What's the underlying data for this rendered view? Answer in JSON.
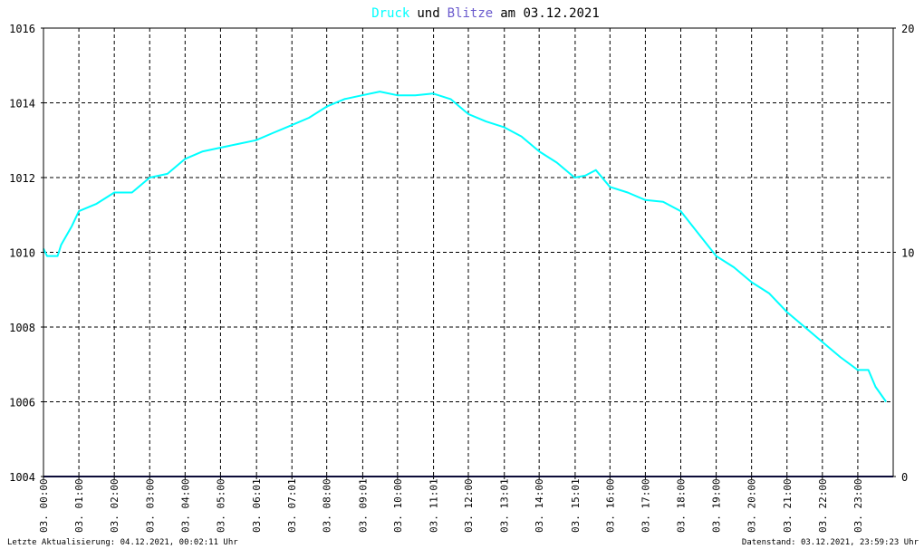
{
  "chart_data": {
    "type": "line",
    "title": {
      "part1": "Druck",
      "part2": "und",
      "part3": "Blitze",
      "part4": "am 03.12.2021",
      "color_druck": "#00ffff",
      "color_blitze": "#6a5acd",
      "color_text": "#000000"
    },
    "ylim": [
      1004,
      1016
    ],
    "y_ticks": [
      "1004",
      "1006",
      "1008",
      "1010",
      "1012",
      "1014",
      "1016"
    ],
    "y2lim": [
      0,
      20
    ],
    "y2_ticks": [
      "0",
      "10",
      "20"
    ],
    "xlim": [
      0,
      24
    ],
    "x_ticks": [
      {
        "h": 0.0,
        "label": "03. 00:00"
      },
      {
        "h": 1.0,
        "label": "03. 01:00"
      },
      {
        "h": 2.0,
        "label": "03. 02:00"
      },
      {
        "h": 3.0,
        "label": "03. 03:00"
      },
      {
        "h": 4.0,
        "label": "03. 04:00"
      },
      {
        "h": 5.0,
        "label": "03. 05:00"
      },
      {
        "h": 6.017,
        "label": "03. 06:01"
      },
      {
        "h": 7.017,
        "label": "03. 07:01"
      },
      {
        "h": 8.0,
        "label": "03. 08:00"
      },
      {
        "h": 9.017,
        "label": "03. 09:01"
      },
      {
        "h": 10.0,
        "label": "03. 10:00"
      },
      {
        "h": 11.017,
        "label": "03. 11:01"
      },
      {
        "h": 12.0,
        "label": "03. 12:00"
      },
      {
        "h": 13.017,
        "label": "03. 13:01"
      },
      {
        "h": 14.0,
        "label": "03. 14:00"
      },
      {
        "h": 15.017,
        "label": "03. 15:01"
      },
      {
        "h": 16.0,
        "label": "03. 16:00"
      },
      {
        "h": 17.0,
        "label": "03. 17:00"
      },
      {
        "h": 18.0,
        "label": "03. 18:00"
      },
      {
        "h": 19.0,
        "label": "03. 19:00"
      },
      {
        "h": 20.0,
        "label": "03. 20:00"
      },
      {
        "h": 21.0,
        "label": "03. 21:00"
      },
      {
        "h": 22.0,
        "label": "03. 22:00"
      },
      {
        "h": 23.0,
        "label": "03. 23:00"
      }
    ],
    "grid": true,
    "series": [
      {
        "name": "Druck",
        "color": "#00ffff",
        "axis": "left",
        "x": [
          0.0,
          0.1,
          0.4,
          0.5,
          0.8,
          1.0,
          1.5,
          2.0,
          2.5,
          3.0,
          3.5,
          4.0,
          4.5,
          5.0,
          5.5,
          6.0,
          6.5,
          7.0,
          7.5,
          8.0,
          8.5,
          9.0,
          9.5,
          10.0,
          10.5,
          11.0,
          11.5,
          12.0,
          12.5,
          13.0,
          13.5,
          14.0,
          14.5,
          15.0,
          15.3,
          15.6,
          16.0,
          16.5,
          17.0,
          17.5,
          18.0,
          18.5,
          19.0,
          19.5,
          20.0,
          20.5,
          21.0,
          21.5,
          22.0,
          22.5,
          23.0,
          23.3,
          23.5,
          23.8
        ],
        "y": [
          1010.1,
          1009.9,
          1009.9,
          1010.2,
          1010.7,
          1011.1,
          1011.3,
          1011.6,
          1011.6,
          1012.0,
          1012.1,
          1012.5,
          1012.7,
          1012.8,
          1012.9,
          1013.0,
          1013.2,
          1013.4,
          1013.6,
          1013.9,
          1014.1,
          1014.2,
          1014.3,
          1014.2,
          1014.2,
          1014.25,
          1014.1,
          1013.7,
          1013.5,
          1013.35,
          1013.1,
          1012.7,
          1012.4,
          1012.0,
          1012.05,
          1012.2,
          1011.75,
          1011.6,
          1011.4,
          1011.35,
          1011.1,
          1010.5,
          1009.9,
          1009.6,
          1009.2,
          1008.9,
          1008.4,
          1008.0,
          1007.6,
          1007.2,
          1006.85,
          1006.85,
          1006.4,
          1006.0
        ]
      },
      {
        "name": "Blitze",
        "color": "#191970",
        "axis": "right",
        "x": [
          0,
          24
        ],
        "y": [
          0,
          0
        ]
      }
    ]
  },
  "footer": {
    "left": "Letzte Aktualisierung: 04.12.2021, 00:02:11 Uhr",
    "right": "Datenstand: 03.12.2021, 23:59:23 Uhr"
  }
}
